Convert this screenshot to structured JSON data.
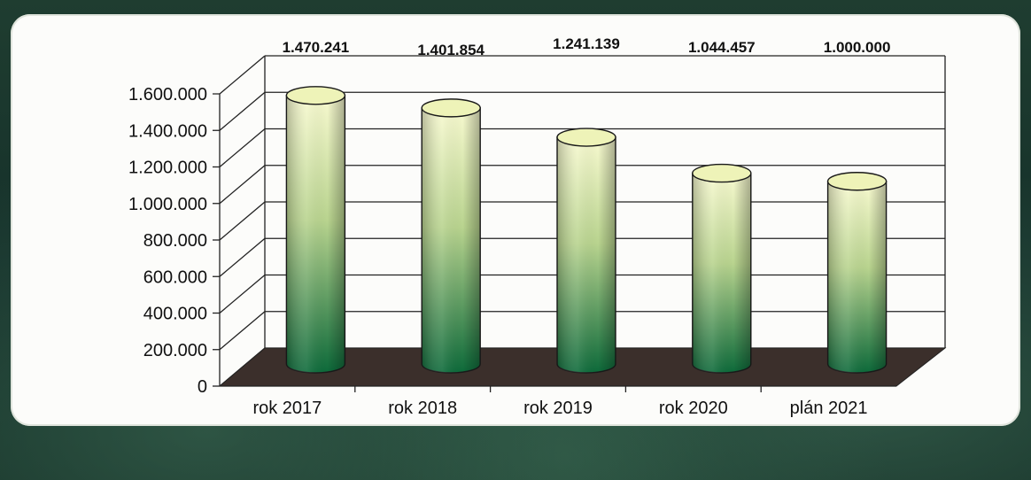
{
  "chart_data": {
    "type": "bar",
    "categories": [
      "rok 2017",
      "rok 2018",
      "rok 2019",
      "rok 2020",
      "plán 2021"
    ],
    "values": [
      1470241,
      1401854,
      1241139,
      1044457,
      1000000
    ],
    "value_labels": [
      "1.470.241",
      "1.401.854",
      "1.241.139",
      "1.044.457",
      "1.000.000"
    ],
    "ylim": [
      0,
      1600000
    ],
    "yticks": [
      0,
      200000,
      400000,
      600000,
      800000,
      1000000,
      1200000,
      1400000,
      1600000
    ],
    "ytick_labels": [
      "0",
      "200.000",
      "400.000",
      "600.000",
      "800.000",
      "1.000.000",
      "1.200.000",
      "1.400.000",
      "1.600.000"
    ],
    "grid": true,
    "title": "",
    "xlabel": "",
    "ylabel": "",
    "bar_shape": "cylinder-3d",
    "colors": {
      "bar_top": "#f6f8c8",
      "bar_bottom": "#0f6a3a",
      "floor": "#3b2f2b",
      "outer_background": "#1b3a2e"
    }
  }
}
